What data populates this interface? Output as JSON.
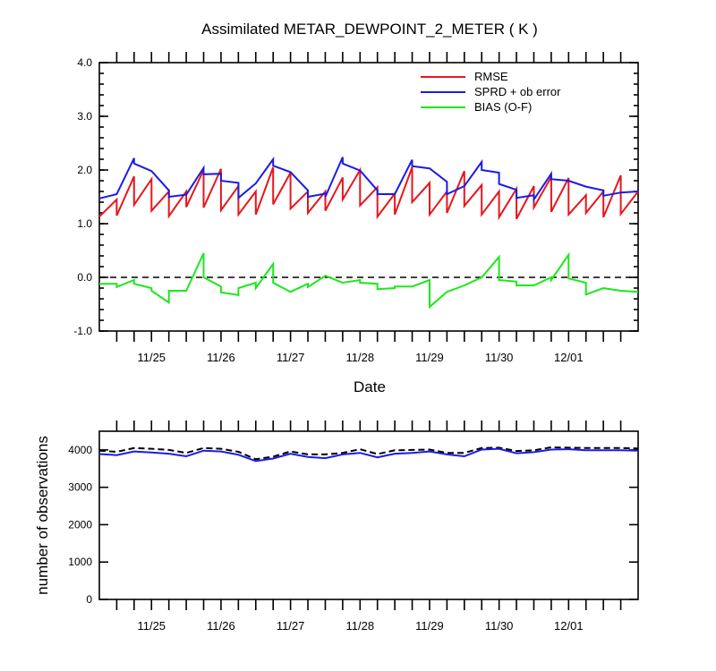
{
  "chart_data": [
    {
      "type": "line",
      "title": "Assimilated METAR_DEWPOINT_2_METER ( K )",
      "xlabel": "Date",
      "ylabel": "",
      "ylim": [
        -1.0,
        4.0
      ],
      "yticks": [
        "-1.0",
        "0.0",
        "1.0",
        "2.0",
        "3.0",
        "4.0"
      ],
      "date_ticks": [
        "11/25",
        "11/26",
        "11/27",
        "11/28",
        "11/29",
        "11/30",
        "12/01"
      ],
      "xlim": [
        0.0,
        7.75
      ],
      "date_tick_positions": [
        0.75,
        1.75,
        2.75,
        3.75,
        4.75,
        5.75,
        6.75
      ],
      "reference_line": 0.0,
      "legend_position": "top-right",
      "series": [
        {
          "name": "RMSE",
          "color": "#e8161b",
          "x": [
            0.0,
            0.25,
            0.25,
            0.5,
            0.5,
            0.75,
            0.75,
            1.0,
            1.0,
            1.25,
            1.25,
            1.5,
            1.5,
            1.75,
            1.75,
            2.0,
            2.0,
            2.25,
            2.25,
            2.5,
            2.5,
            2.75,
            2.75,
            3.0,
            3.0,
            3.25,
            3.25,
            3.5,
            3.5,
            3.75,
            3.75,
            4.0,
            4.0,
            4.25,
            4.25,
            4.5,
            4.5,
            4.75,
            4.75,
            5.0,
            5.0,
            5.25,
            5.25,
            5.5,
            5.5,
            5.75,
            5.75,
            6.0,
            6.0,
            6.25,
            6.25,
            6.5,
            6.5,
            6.75,
            6.75,
            7.0,
            7.0,
            7.25,
            7.25,
            7.5,
            7.5,
            7.75
          ],
          "y": [
            1.13,
            1.45,
            1.15,
            1.88,
            1.35,
            1.83,
            1.24,
            1.6,
            1.14,
            1.6,
            1.31,
            2.0,
            1.3,
            2.02,
            1.25,
            1.7,
            1.17,
            1.6,
            1.17,
            2.05,
            1.36,
            1.95,
            1.28,
            1.6,
            1.2,
            1.6,
            1.24,
            1.86,
            1.45,
            2.0,
            1.34,
            1.68,
            1.13,
            1.56,
            1.17,
            2.05,
            1.4,
            1.76,
            1.17,
            1.6,
            1.2,
            1.98,
            1.33,
            1.72,
            1.17,
            1.6,
            1.12,
            1.65,
            1.09,
            1.7,
            1.3,
            1.87,
            1.22,
            1.85,
            1.17,
            1.53,
            1.2,
            1.6,
            1.12,
            1.9,
            1.18,
            1.6
          ]
        },
        {
          "name": "SPRD + ob error",
          "color": "#1b1be8",
          "x": [
            0.0,
            0.25,
            0.25,
            0.5,
            0.5,
            0.75,
            0.75,
            1.0,
            1.0,
            1.25,
            1.25,
            1.5,
            1.5,
            1.75,
            1.75,
            2.0,
            2.0,
            2.25,
            2.25,
            2.5,
            2.5,
            2.75,
            2.75,
            3.0,
            3.0,
            3.25,
            3.25,
            3.5,
            3.5,
            3.75,
            3.75,
            4.0,
            4.0,
            4.25,
            4.25,
            4.5,
            4.5,
            4.75,
            4.75,
            5.0,
            5.0,
            5.25,
            5.25,
            5.5,
            5.5,
            5.75,
            5.75,
            6.0,
            6.0,
            6.25,
            6.25,
            6.5,
            6.5,
            6.75,
            6.75,
            7.0,
            7.0,
            7.25,
            7.25,
            7.5,
            7.5,
            7.75
          ],
          "y": [
            1.47,
            1.55,
            1.55,
            2.22,
            2.12,
            1.98,
            1.98,
            1.62,
            1.5,
            1.54,
            1.54,
            2.04,
            1.92,
            1.93,
            1.8,
            1.76,
            1.48,
            1.75,
            1.75,
            2.2,
            2.08,
            1.96,
            1.96,
            1.62,
            1.5,
            1.56,
            1.5,
            2.24,
            2.12,
            1.99,
            1.99,
            1.62,
            1.55,
            1.55,
            1.55,
            2.19,
            2.07,
            2.03,
            2.03,
            1.78,
            1.55,
            1.7,
            1.7,
            2.15,
            2.0,
            1.95,
            1.74,
            1.63,
            1.48,
            1.53,
            1.45,
            1.93,
            1.83,
            1.8,
            1.8,
            1.69,
            1.69,
            1.62,
            1.52,
            1.58,
            1.58,
            1.6
          ]
        },
        {
          "name": "BIAS (O-F)",
          "color": "#1be81b",
          "x": [
            0.0,
            0.25,
            0.25,
            0.5,
            0.5,
            0.75,
            0.75,
            1.0,
            1.0,
            1.25,
            1.25,
            1.5,
            1.5,
            1.75,
            1.75,
            2.0,
            2.0,
            2.25,
            2.25,
            2.5,
            2.5,
            2.75,
            2.75,
            3.0,
            3.0,
            3.25,
            3.25,
            3.5,
            3.5,
            3.75,
            3.75,
            4.0,
            4.0,
            4.25,
            4.25,
            4.5,
            4.5,
            4.75,
            4.75,
            5.0,
            5.0,
            5.25,
            5.25,
            5.5,
            5.5,
            5.75,
            5.75,
            6.0,
            6.0,
            6.25,
            6.25,
            6.5,
            6.5,
            6.75,
            6.75,
            7.0,
            7.0,
            7.25,
            7.25,
            7.5,
            7.5,
            7.75
          ],
          "y": [
            -0.12,
            -0.12,
            -0.18,
            -0.05,
            -0.12,
            -0.2,
            -0.25,
            -0.47,
            -0.25,
            -0.25,
            -0.25,
            0.45,
            0.0,
            -0.17,
            -0.28,
            -0.33,
            -0.2,
            -0.1,
            -0.2,
            0.25,
            -0.1,
            -0.27,
            -0.27,
            -0.12,
            -0.18,
            0.03,
            0.03,
            -0.1,
            -0.1,
            -0.05,
            -0.1,
            -0.12,
            -0.22,
            -0.2,
            -0.17,
            -0.17,
            -0.17,
            -0.05,
            -0.55,
            -0.27,
            -0.27,
            -0.15,
            -0.15,
            0.0,
            0.0,
            0.38,
            -0.05,
            -0.08,
            -0.15,
            -0.15,
            -0.15,
            0.0,
            -0.05,
            0.42,
            -0.02,
            -0.1,
            -0.32,
            -0.2,
            -0.2,
            -0.25,
            -0.25,
            -0.27
          ]
        }
      ]
    },
    {
      "type": "line",
      "title": "",
      "xlabel": "",
      "ylabel": "number of observations",
      "ylim": [
        0,
        4500
      ],
      "yticks": [
        "0",
        "1000",
        "2000",
        "3000",
        "4000"
      ],
      "date_ticks": [
        "11/25",
        "11/26",
        "11/27",
        "11/28",
        "11/29",
        "11/30",
        "12/01"
      ],
      "xlim": [
        0.0,
        7.75
      ],
      "date_tick_positions": [
        0.75,
        1.75,
        2.75,
        3.75,
        4.75,
        5.75,
        6.75
      ],
      "series": [
        {
          "color": "#000000",
          "dashed": true,
          "x": [
            0.0,
            0.25,
            0.5,
            0.75,
            1.0,
            1.25,
            1.5,
            1.75,
            2.0,
            2.25,
            2.5,
            2.75,
            3.0,
            3.25,
            3.5,
            3.75,
            4.0,
            4.25,
            4.5,
            4.75,
            5.0,
            5.25,
            5.5,
            5.75,
            6.0,
            6.25,
            6.5,
            6.75,
            7.0,
            7.25,
            7.5,
            7.75
          ],
          "y": [
            3980,
            3950,
            4050,
            4030,
            4000,
            3920,
            4050,
            4030,
            3950,
            3750,
            3820,
            3960,
            3880,
            3880,
            3920,
            4020,
            3890,
            3990,
            4000,
            4010,
            3920,
            3920,
            4050,
            4060,
            3970,
            3990,
            4070,
            4060,
            4050,
            4050,
            4050,
            4040
          ]
        },
        {
          "color": "#1b1be8",
          "dashed": false,
          "x": [
            0.0,
            0.25,
            0.5,
            0.75,
            1.0,
            1.25,
            1.5,
            1.75,
            2.0,
            2.25,
            2.5,
            2.75,
            3.0,
            3.25,
            3.5,
            3.75,
            4.0,
            4.25,
            4.5,
            4.75,
            5.0,
            5.25,
            5.5,
            5.75,
            6.0,
            6.25,
            6.5,
            6.75,
            7.0,
            7.25,
            7.5,
            7.75
          ],
          "y": [
            3890,
            3860,
            3960,
            3930,
            3900,
            3830,
            3980,
            3960,
            3870,
            3700,
            3770,
            3900,
            3810,
            3780,
            3880,
            3920,
            3800,
            3900,
            3920,
            3960,
            3880,
            3830,
            4010,
            4030,
            3910,
            3940,
            4010,
            4020,
            3990,
            3990,
            3990,
            3980
          ]
        }
      ]
    }
  ]
}
